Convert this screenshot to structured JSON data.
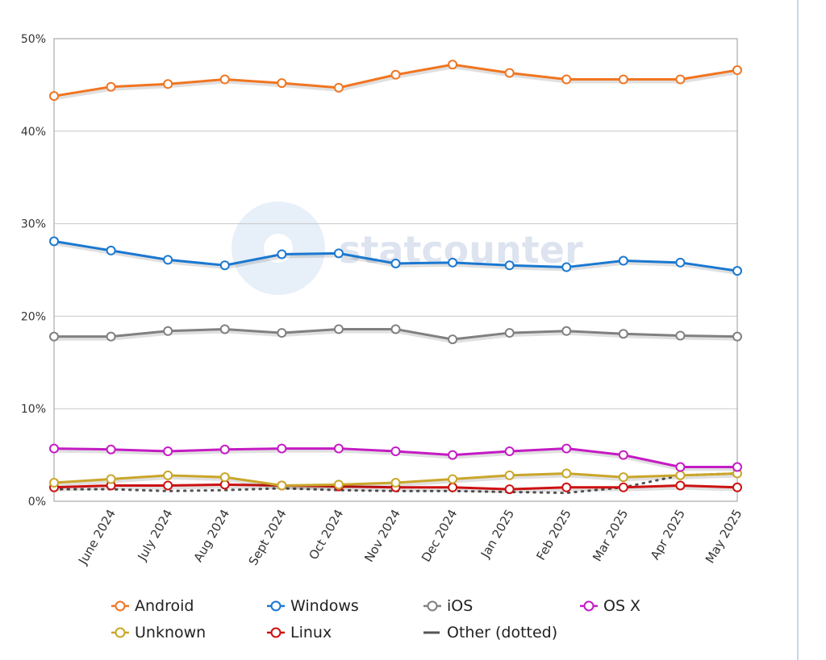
{
  "chart_data": {
    "type": "line",
    "title": "",
    "xlabel": "",
    "ylabel": "",
    "ylim": [
      0,
      50
    ],
    "yticks": [
      "0%",
      "10%",
      "20%",
      "30%",
      "40%",
      "50%"
    ],
    "grid": true,
    "legend_placement": "bottom",
    "watermark": "statcounter",
    "categories": [
      "",
      "June 2024",
      "July 2024",
      "Aug 2024",
      "Sept 2024",
      "Oct 2024",
      "Nov 2024",
      "Dec 2024",
      "Jan 2025",
      "Feb 2025",
      "Mar 2025",
      "Apr 2025",
      "May 2025"
    ],
    "series": [
      {
        "name": "Android",
        "color": "#f07521",
        "values": [
          43.8,
          44.8,
          45.1,
          45.6,
          45.2,
          44.7,
          46.1,
          47.2,
          46.3,
          45.6,
          45.6,
          45.6,
          46.6
        ]
      },
      {
        "name": "Windows",
        "color": "#1b78d0",
        "values": [
          28.1,
          27.1,
          26.1,
          25.5,
          26.7,
          26.8,
          25.7,
          25.8,
          25.5,
          25.3,
          26.0,
          25.8,
          24.9
        ]
      },
      {
        "name": "iOS",
        "color": "#808080",
        "values": [
          17.8,
          17.8,
          18.4,
          18.6,
          18.2,
          18.6,
          18.6,
          17.5,
          18.2,
          18.4,
          18.1,
          17.9,
          17.8
        ]
      },
      {
        "name": "OS X",
        "color": "#c41bc4",
        "values": [
          5.7,
          5.6,
          5.4,
          5.6,
          5.7,
          5.7,
          5.4,
          5.0,
          5.4,
          5.7,
          5.0,
          3.7,
          3.7
        ]
      },
      {
        "name": "Unknown",
        "color": "#c9a62a",
        "values": [
          2.0,
          2.4,
          2.8,
          2.6,
          1.7,
          1.8,
          2.0,
          2.4,
          2.8,
          3.0,
          2.6,
          2.8,
          3.0
        ]
      },
      {
        "name": "Linux",
        "color": "#cc1111",
        "values": [
          1.5,
          1.7,
          1.7,
          1.8,
          1.7,
          1.6,
          1.5,
          1.5,
          1.3,
          1.5,
          1.5,
          1.7,
          1.5
        ]
      },
      {
        "name": "Other (dotted)",
        "color": "#555555",
        "dotted": true,
        "values": [
          1.3,
          1.3,
          1.1,
          1.2,
          1.4,
          1.2,
          1.1,
          1.1,
          1.0,
          0.9,
          1.5,
          2.8,
          3.0
        ]
      }
    ]
  }
}
